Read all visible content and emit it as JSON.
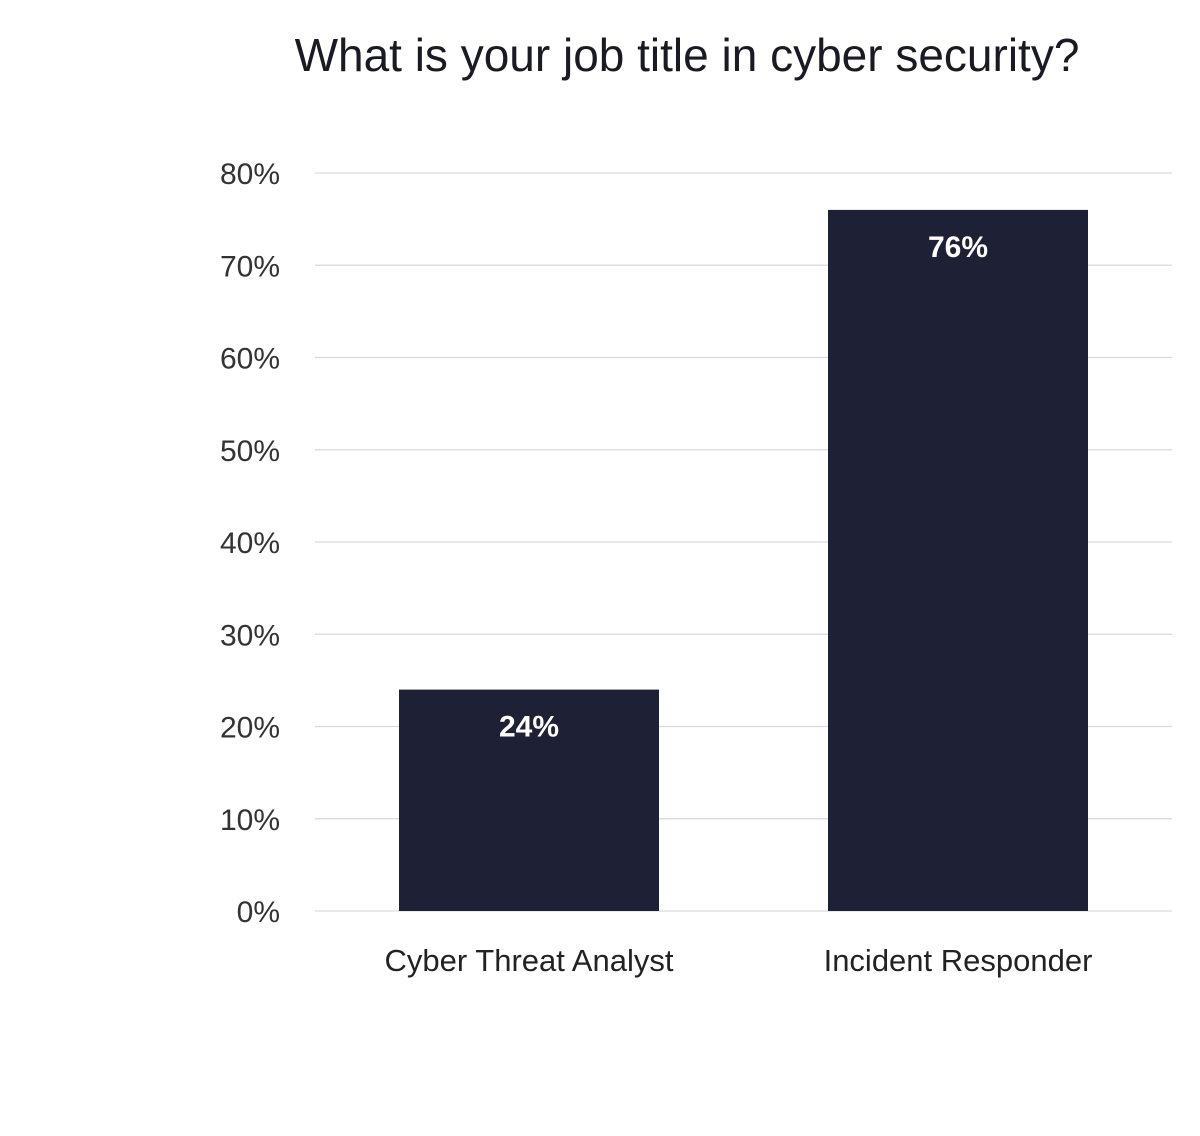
{
  "chart_data": {
    "type": "bar",
    "title": "What is your job title in cyber security?",
    "categories": [
      "Cyber Threat Analyst",
      "Incident Responder"
    ],
    "values": [
      24,
      76
    ],
    "data_labels": [
      "24%",
      "76%"
    ],
    "xlabel": "",
    "ylabel": "",
    "ylim": [
      0,
      80
    ],
    "yticks": [
      0,
      10,
      20,
      30,
      40,
      50,
      60,
      70,
      80
    ],
    "ytick_labels": [
      "0%",
      "10%",
      "20%",
      "30%",
      "40%",
      "50%",
      "60%",
      "70%",
      "80%"
    ],
    "grid": true,
    "legend": "none",
    "bar_color": "#1e2035",
    "grid_color": "#d9d9d9"
  }
}
